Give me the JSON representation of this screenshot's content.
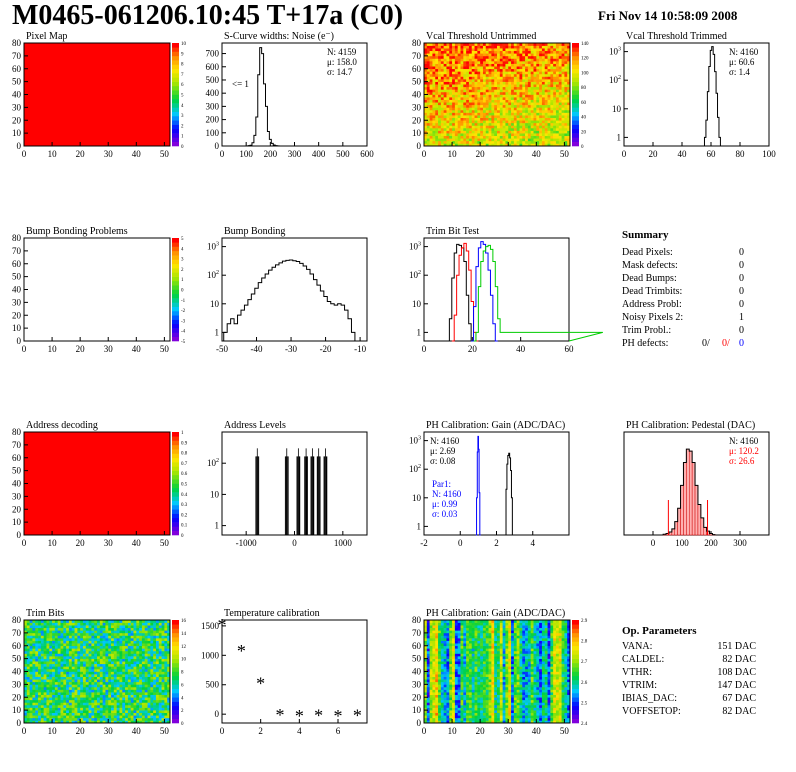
{
  "header": {
    "title": "M0465-061206.10:45 T+17a (C0)",
    "date": "Fri Nov 14 10:58:09 2008"
  },
  "colors": {
    "primary": "#000000",
    "red": "#ff0000",
    "blue": "#0000ff",
    "green": "#00cc00",
    "map_red": "#ff0000"
  },
  "panels": [
    {
      "title": "Pixel Map",
      "stats": []
    },
    {
      "title": "S-Curve widths: Noise (e⁻)",
      "stats": [
        "N: 4159",
        "μ: 158.0",
        "σ: 14.7"
      ],
      "note": "<= 1"
    },
    {
      "title": "Vcal Threshold Untrimmed",
      "stats": []
    },
    {
      "title": "Vcal Threshold Trimmed",
      "stats": [
        "N: 4160",
        "μ: 60.6",
        "σ: 1.4"
      ]
    },
    {
      "title": "Bump Bonding Problems",
      "stats": []
    },
    {
      "title": "Bump Bonding",
      "stats": []
    },
    {
      "title": "Trim Bit Test",
      "stats": []
    },
    {
      "title": "Address decoding",
      "stats": []
    },
    {
      "title": "Address Levels",
      "stats": []
    },
    {
      "title": "PH Calibration: Gain (ADC/DAC)",
      "stats": [
        "N: 4160",
        "μ: 2.69",
        "σ: 0.08"
      ],
      "stats2": [
        "Par1:",
        "N: 4160",
        "μ: 0.99",
        "σ: 0.03"
      ]
    },
    {
      "title": "PH Calibration: Pedestal (DAC)",
      "stats": [
        "N: 4160",
        "μ: 120.2",
        "σ: 26.6"
      ]
    },
    {
      "title": "Trim Bits",
      "stats": []
    },
    {
      "title": "Temperature calibration",
      "stats": []
    },
    {
      "title": "PH Calibration: Gain (ADC/DAC)",
      "stats": []
    }
  ],
  "summary": {
    "title": "Summary",
    "rows": [
      {
        "label": "Dead Pixels:",
        "value": "0"
      },
      {
        "label": "Mask defects:",
        "value": "0"
      },
      {
        "label": "Dead Bumps:",
        "value": "0"
      },
      {
        "label": "Dead Trimbits:",
        "value": "0"
      },
      {
        "label": "Address Probl:",
        "value": "0"
      },
      {
        "label": "Noisy Pixels 2:",
        "value": "1"
      },
      {
        "label": "Trim Probl.:",
        "value": "0"
      }
    ],
    "ph_label": "PH defects:",
    "ph_values": [
      "0/",
      "0/",
      "0"
    ]
  },
  "op_params": {
    "title": "Op. Parameters",
    "rows": [
      {
        "label": "VANA:",
        "value": "151 DAC"
      },
      {
        "label": "CALDEL:",
        "value": "82 DAC"
      },
      {
        "label": "VTHR:",
        "value": "108 DAC"
      },
      {
        "label": "VTRIM:",
        "value": "147 DAC"
      },
      {
        "label": "IBIAS_DAC:",
        "value": "67 DAC"
      },
      {
        "label": "VOFFSETOP:",
        "value": "82 DAC"
      }
    ]
  },
  "chart_data": [
    {
      "type": "heatmap",
      "title": "Pixel Map",
      "xlim": [
        0,
        52
      ],
      "ylim": [
        0,
        80
      ],
      "xticks": [
        0,
        10,
        20,
        30,
        40,
        50
      ],
      "yticks": [
        0,
        10,
        20,
        30,
        40,
        50,
        60,
        70,
        80
      ],
      "fill": "uniform",
      "zlim": [
        0,
        10
      ],
      "zticks": [
        0,
        1,
        2,
        3,
        4,
        5,
        6,
        7,
        8,
        9,
        10
      ]
    },
    {
      "type": "line",
      "title": "S-Curve widths: Noise (e⁻)",
      "xlim": [
        0,
        600
      ],
      "ylim": [
        0,
        780
      ],
      "xticks": [
        0,
        100,
        200,
        300,
        400,
        500,
        600
      ],
      "yticks": [
        0,
        100,
        200,
        300,
        400,
        500,
        600,
        700
      ],
      "x": [
        112,
        120,
        128,
        136,
        144,
        152,
        160,
        168,
        176,
        184,
        192,
        200,
        208,
        216,
        224,
        232,
        240
      ],
      "y": [
        3,
        6,
        25,
        80,
        220,
        540,
        745,
        700,
        470,
        300,
        110,
        50,
        20,
        8,
        3,
        1,
        0
      ]
    },
    {
      "type": "heatmap",
      "title": "Vcal Threshold Untrimmed",
      "xlim": [
        0,
        52
      ],
      "ylim": [
        0,
        80
      ],
      "xticks": [
        0,
        10,
        20,
        30,
        40,
        50
      ],
      "yticks": [
        0,
        10,
        20,
        30,
        40,
        50,
        60,
        70,
        80
      ],
      "fill": "noise",
      "zlim": [
        0,
        140
      ],
      "zticks": [
        0,
        20,
        40,
        60,
        80,
        100,
        120,
        140
      ]
    },
    {
      "type": "line",
      "title": "Vcal Threshold Trimmed",
      "scale": "log",
      "xlim": [
        0,
        100
      ],
      "ylim": [
        0.5,
        2000
      ],
      "xticks": [
        0,
        20,
        40,
        60,
        80,
        100
      ],
      "yticks": [
        1,
        10,
        100,
        1000
      ],
      "x": [
        55,
        56,
        57,
        58,
        59,
        60,
        61,
        62,
        63,
        64,
        65,
        66,
        67
      ],
      "y": [
        0,
        1,
        4,
        40,
        300,
        1100,
        1500,
        800,
        200,
        35,
        5,
        1,
        0
      ]
    },
    {
      "type": "heatmap",
      "title": "Bump Bonding Problems",
      "xlim": [
        0,
        52
      ],
      "ylim": [
        0,
        80
      ],
      "xticks": [
        0,
        10,
        20,
        30,
        40,
        50
      ],
      "yticks": [
        0,
        10,
        20,
        30,
        40,
        50,
        60,
        70,
        80
      ],
      "fill": "empty",
      "zlim": [
        -5,
        5
      ],
      "zticks": [
        -5,
        -4,
        -3,
        -2,
        -1,
        0,
        1,
        2,
        3,
        4,
        5
      ]
    },
    {
      "type": "line",
      "title": "Bump Bonding",
      "scale": "log",
      "xlim": [
        -50,
        -8
      ],
      "ylim": [
        0.5,
        2000
      ],
      "xticks": [
        -50,
        -40,
        -30,
        -20,
        -10
      ],
      "yticks": [
        1,
        10,
        100,
        1000
      ],
      "x": [
        -49,
        -48,
        -47,
        -46,
        -45,
        -44,
        -43,
        -42,
        -41,
        -40,
        -39,
        -38,
        -37,
        -36,
        -35,
        -34,
        -33,
        -32,
        -31,
        -30,
        -29,
        -28,
        -27,
        -26,
        -25,
        -24,
        -23,
        -22,
        -21,
        -20,
        -19,
        -18,
        -17,
        -16,
        -15,
        -14,
        -13,
        -12,
        -11
      ],
      "y": [
        1,
        2,
        3,
        2,
        4,
        6,
        9,
        14,
        22,
        35,
        55,
        80,
        110,
        150,
        190,
        230,
        270,
        310,
        330,
        340,
        320,
        300,
        260,
        210,
        160,
        110,
        70,
        45,
        28,
        18,
        12,
        10,
        9,
        10,
        9,
        6,
        3,
        1,
        0
      ]
    },
    {
      "type": "line",
      "title": "Trim Bit Test",
      "scale": "log",
      "xlim": [
        0,
        60
      ],
      "ylim": [
        0.5,
        2000
      ],
      "xticks": [
        0,
        20,
        40,
        60
      ],
      "yticks": [
        1,
        10,
        100,
        1000
      ],
      "series": [
        {
          "color": "#000000",
          "x": [
            10,
            11,
            12,
            13,
            14,
            15,
            16,
            17,
            18,
            19,
            20
          ],
          "y": [
            0,
            3,
            80,
            600,
            1200,
            1100,
            900,
            300,
            20,
            2,
            0
          ]
        },
        {
          "color": "#ff0000",
          "x": [
            12,
            13,
            14,
            15,
            16,
            17,
            18,
            19,
            20,
            21,
            22
          ],
          "y": [
            0,
            4,
            100,
            500,
            900,
            1300,
            700,
            150,
            12,
            1,
            0
          ]
        },
        {
          "color": "#0000ff",
          "x": [
            20,
            21,
            22,
            23,
            24,
            25,
            26,
            27,
            28,
            29,
            30
          ],
          "y": [
            0,
            8,
            200,
            900,
            1500,
            1200,
            600,
            150,
            20,
            2,
            0
          ]
        },
        {
          "color": "#00cc00",
          "x": [
            21,
            22,
            23,
            24,
            25,
            26,
            27,
            28,
            29,
            30,
            31,
            32,
            60
          ],
          "y": [
            0,
            1,
            40,
            300,
            700,
            1000,
            1100,
            800,
            300,
            40,
            3,
            1,
            1
          ]
        }
      ]
    },
    {
      "type": "heatmap",
      "title": "Address decoding",
      "xlim": [
        0,
        52
      ],
      "ylim": [
        0,
        80
      ],
      "xticks": [
        0,
        10,
        20,
        30,
        40,
        50
      ],
      "yticks": [
        0,
        10,
        20,
        30,
        40,
        50,
        60,
        70,
        80
      ],
      "fill": "uniform",
      "zlim": [
        0,
        1
      ],
      "zticks": [
        0,
        0.1,
        0.2,
        0.3,
        0.4,
        0.5,
        0.6,
        0.7,
        0.8,
        0.9,
        1
      ]
    },
    {
      "type": "line",
      "title": "Address Levels",
      "scale": "log",
      "xlim": [
        -1500,
        1500
      ],
      "ylim": [
        0.5,
        1000
      ],
      "xticks": [
        -1000,
        0,
        1000
      ],
      "yticks": [
        1,
        10,
        100
      ],
      "peaks": [
        -770,
        -160,
        80,
        240,
        370,
        500,
        640
      ],
      "peak_height": 300
    },
    {
      "type": "line",
      "title": "PH Calibration: Gain (ADC/DAC)",
      "scale": "log",
      "xlim": [
        -2,
        6
      ],
      "ylim": [
        0.5,
        2000
      ],
      "xticks": [
        -2,
        0,
        2,
        4
      ],
      "yticks": [
        1,
        10,
        100,
        1000
      ],
      "series": [
        {
          "color": "#000000",
          "x": [
            2.5,
            2.55,
            2.6,
            2.65,
            2.7,
            2.75,
            2.8,
            2.85,
            2.9
          ],
          "y": [
            0,
            20,
            150,
            300,
            360,
            250,
            90,
            10,
            0
          ]
        },
        {
          "color": "#0000ff",
          "x": [
            0.88,
            0.92,
            0.96,
            0.99,
            1.02,
            1.06,
            1.1
          ],
          "y": [
            0,
            10,
            400,
            1400,
            500,
            15,
            0
          ]
        }
      ]
    },
    {
      "type": "line",
      "title": "PH Calibration: Pedestal (DAC)",
      "xlim": [
        -100,
        400
      ],
      "ylim": [
        0,
        270
      ],
      "xticks": [
        0,
        100,
        200,
        300
      ],
      "x": [
        40,
        50,
        60,
        70,
        80,
        90,
        100,
        110,
        120,
        130,
        140,
        150,
        160,
        170,
        180,
        190,
        200,
        210
      ],
      "y": [
        2,
        4,
        8,
        16,
        35,
        70,
        130,
        190,
        225,
        220,
        190,
        130,
        80,
        45,
        20,
        10,
        4,
        1
      ],
      "fit_range": [
        53,
        188
      ]
    },
    {
      "type": "heatmap",
      "title": "Trim Bits",
      "xlim": [
        0,
        52
      ],
      "ylim": [
        0,
        80
      ],
      "xticks": [
        0,
        10,
        20,
        30,
        40,
        50
      ],
      "yticks": [
        0,
        10,
        20,
        30,
        40,
        50,
        60,
        70,
        80
      ],
      "fill": "trim",
      "zlim": [
        0,
        16
      ],
      "zticks": [
        0,
        2,
        4,
        6,
        8,
        10,
        12,
        14,
        16
      ]
    },
    {
      "type": "scatter",
      "title": "Temperature calibration",
      "xlim": [
        0,
        7.5
      ],
      "ylim": [
        -150,
        1600
      ],
      "xticks": [
        0,
        2,
        4,
        6
      ],
      "yticks": [
        0,
        500,
        1000,
        1500
      ],
      "x": [
        0,
        1,
        2,
        3,
        4,
        5,
        6,
        7
      ],
      "y": [
        1500,
        1060,
        500,
        -30,
        -50,
        -40,
        -50,
        -40
      ]
    },
    {
      "type": "heatmap",
      "title": "PH Calibration: Gain (ADC/DAC)",
      "xlim": [
        0,
        52
      ],
      "ylim": [
        0,
        80
      ],
      "xticks": [
        0,
        10,
        20,
        30,
        40,
        50
      ],
      "yticks": [
        0,
        10,
        20,
        30,
        40,
        50,
        60,
        70,
        80
      ],
      "fill": "columns",
      "zlim": [
        2.4,
        2.9
      ],
      "zticks": [
        2.4,
        2.5,
        2.6,
        2.7,
        2.8,
        2.9
      ]
    }
  ]
}
